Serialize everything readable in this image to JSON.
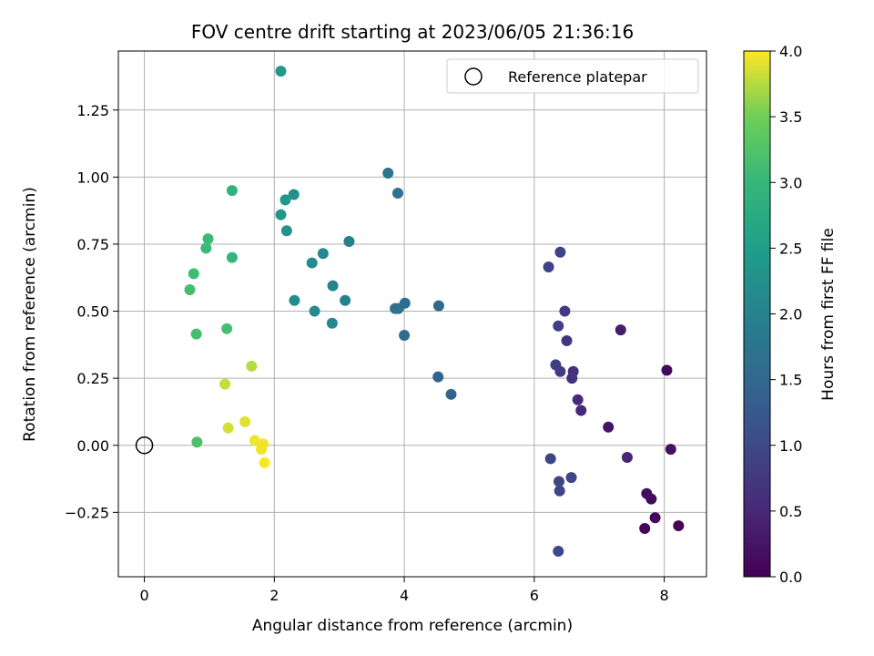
{
  "chart_data": {
    "type": "scatter",
    "title": "FOV centre drift starting at 2023/06/05 21:36:16",
    "xlabel": "Angular distance from reference (arcmin)",
    "ylabel": "Rotation from reference (arcmin)",
    "xlim": [
      -0.4,
      8.65
    ],
    "ylim": [
      -0.49,
      1.47
    ],
    "xticks": [
      0,
      2,
      4,
      6,
      8
    ],
    "xtick_labels": [
      "0",
      "2",
      "4",
      "6",
      "8"
    ],
    "yticks": [
      -0.25,
      0.0,
      0.25,
      0.5,
      0.75,
      1.0,
      1.25
    ],
    "ytick_labels": [
      "−0.25",
      "0.00",
      "0.25",
      "0.50",
      "0.75",
      "1.00",
      "1.25"
    ],
    "grid": true,
    "legend": {
      "position": "top-right",
      "entries": [
        "Reference platepar"
      ]
    },
    "reference_point": {
      "x": 0.0,
      "y": 0.0
    },
    "colorbar": {
      "label": "Hours from first FF file",
      "colormap": "viridis",
      "range": [
        0.0,
        4.0
      ],
      "ticks": [
        0.0,
        0.5,
        1.0,
        1.5,
        2.0,
        2.5,
        3.0,
        3.5,
        4.0
      ],
      "tick_labels": [
        "0.0",
        "0.5",
        "1.0",
        "1.5",
        "2.0",
        "2.5",
        "3.0",
        "3.5",
        "4.0"
      ]
    },
    "points": [
      {
        "x": 7.7,
        "y": -0.31,
        "c": 0.05
      },
      {
        "x": 8.22,
        "y": -0.3,
        "c": 0.05
      },
      {
        "x": 7.86,
        "y": -0.27,
        "c": 0.1
      },
      {
        "x": 7.8,
        "y": -0.2,
        "c": 0.1
      },
      {
        "x": 7.73,
        "y": -0.18,
        "c": 0.15
      },
      {
        "x": 8.04,
        "y": 0.28,
        "c": 0.1
      },
      {
        "x": 8.1,
        "y": -0.015,
        "c": 0.2
      },
      {
        "x": 7.14,
        "y": 0.068,
        "c": 0.25
      },
      {
        "x": 7.33,
        "y": 0.43,
        "c": 0.35
      },
      {
        "x": 7.43,
        "y": -0.045,
        "c": 0.45
      },
      {
        "x": 6.72,
        "y": 0.13,
        "c": 0.5
      },
      {
        "x": 6.67,
        "y": 0.17,
        "c": 0.55
      },
      {
        "x": 6.6,
        "y": 0.275,
        "c": 0.6
      },
      {
        "x": 6.58,
        "y": 0.25,
        "c": 0.65
      },
      {
        "x": 6.5,
        "y": 0.39,
        "c": 0.7
      },
      {
        "x": 6.47,
        "y": 0.5,
        "c": 0.75
      },
      {
        "x": 6.4,
        "y": 0.275,
        "c": 0.8
      },
      {
        "x": 6.37,
        "y": 0.445,
        "c": 0.85
      },
      {
        "x": 6.33,
        "y": 0.3,
        "c": 0.85
      },
      {
        "x": 6.4,
        "y": 0.72,
        "c": 0.9
      },
      {
        "x": 6.22,
        "y": 0.665,
        "c": 0.9
      },
      {
        "x": 6.57,
        "y": -0.12,
        "c": 0.95
      },
      {
        "x": 6.38,
        "y": -0.135,
        "c": 0.95
      },
      {
        "x": 6.39,
        "y": -0.17,
        "c": 0.95
      },
      {
        "x": 6.25,
        "y": -0.05,
        "c": 0.95
      },
      {
        "x": 6.37,
        "y": -0.395,
        "c": 1.0
      },
      {
        "x": 4.72,
        "y": 0.19,
        "c": 1.45
      },
      {
        "x": 4.52,
        "y": 0.255,
        "c": 1.45
      },
      {
        "x": 4.53,
        "y": 0.52,
        "c": 1.5
      },
      {
        "x": 4.0,
        "y": 0.41,
        "c": 1.55
      },
      {
        "x": 4.01,
        "y": 0.53,
        "c": 1.6
      },
      {
        "x": 3.91,
        "y": 0.51,
        "c": 1.65
      },
      {
        "x": 3.86,
        "y": 0.51,
        "c": 1.65
      },
      {
        "x": 3.9,
        "y": 0.94,
        "c": 1.7
      },
      {
        "x": 3.75,
        "y": 1.015,
        "c": 1.75
      },
      {
        "x": 3.15,
        "y": 0.76,
        "c": 1.95
      },
      {
        "x": 3.09,
        "y": 0.54,
        "c": 2.0
      },
      {
        "x": 2.9,
        "y": 0.595,
        "c": 2.05
      },
      {
        "x": 2.89,
        "y": 0.455,
        "c": 2.1
      },
      {
        "x": 2.75,
        "y": 0.715,
        "c": 2.1
      },
      {
        "x": 2.62,
        "y": 0.5,
        "c": 2.15
      },
      {
        "x": 2.58,
        "y": 0.68,
        "c": 2.2
      },
      {
        "x": 2.31,
        "y": 0.54,
        "c": 2.2
      },
      {
        "x": 2.3,
        "y": 0.935,
        "c": 2.25
      },
      {
        "x": 2.19,
        "y": 0.8,
        "c": 2.3
      },
      {
        "x": 2.17,
        "y": 0.915,
        "c": 2.35
      },
      {
        "x": 2.1,
        "y": 0.86,
        "c": 2.35
      },
      {
        "x": 2.1,
        "y": 1.395,
        "c": 2.4
      },
      {
        "x": 1.35,
        "y": 0.95,
        "c": 2.9
      },
      {
        "x": 1.35,
        "y": 0.7,
        "c": 2.95
      },
      {
        "x": 0.98,
        "y": 0.77,
        "c": 3.05
      },
      {
        "x": 0.95,
        "y": 0.735,
        "c": 3.05
      },
      {
        "x": 0.76,
        "y": 0.64,
        "c": 3.1
      },
      {
        "x": 0.7,
        "y": 0.58,
        "c": 3.15
      },
      {
        "x": 0.8,
        "y": 0.415,
        "c": 3.15
      },
      {
        "x": 1.27,
        "y": 0.435,
        "c": 3.15
      },
      {
        "x": 0.81,
        "y": 0.012,
        "c": 3.2
      },
      {
        "x": 1.65,
        "y": 0.295,
        "c": 3.75
      },
      {
        "x": 1.24,
        "y": 0.228,
        "c": 3.8
      },
      {
        "x": 1.29,
        "y": 0.065,
        "c": 3.85
      },
      {
        "x": 1.55,
        "y": 0.088,
        "c": 3.9
      },
      {
        "x": 1.7,
        "y": 0.018,
        "c": 3.95
      },
      {
        "x": 1.83,
        "y": 0.005,
        "c": 3.95
      },
      {
        "x": 1.8,
        "y": -0.015,
        "c": 3.95
      },
      {
        "x": 1.85,
        "y": -0.065,
        "c": 4.0
      }
    ]
  }
}
